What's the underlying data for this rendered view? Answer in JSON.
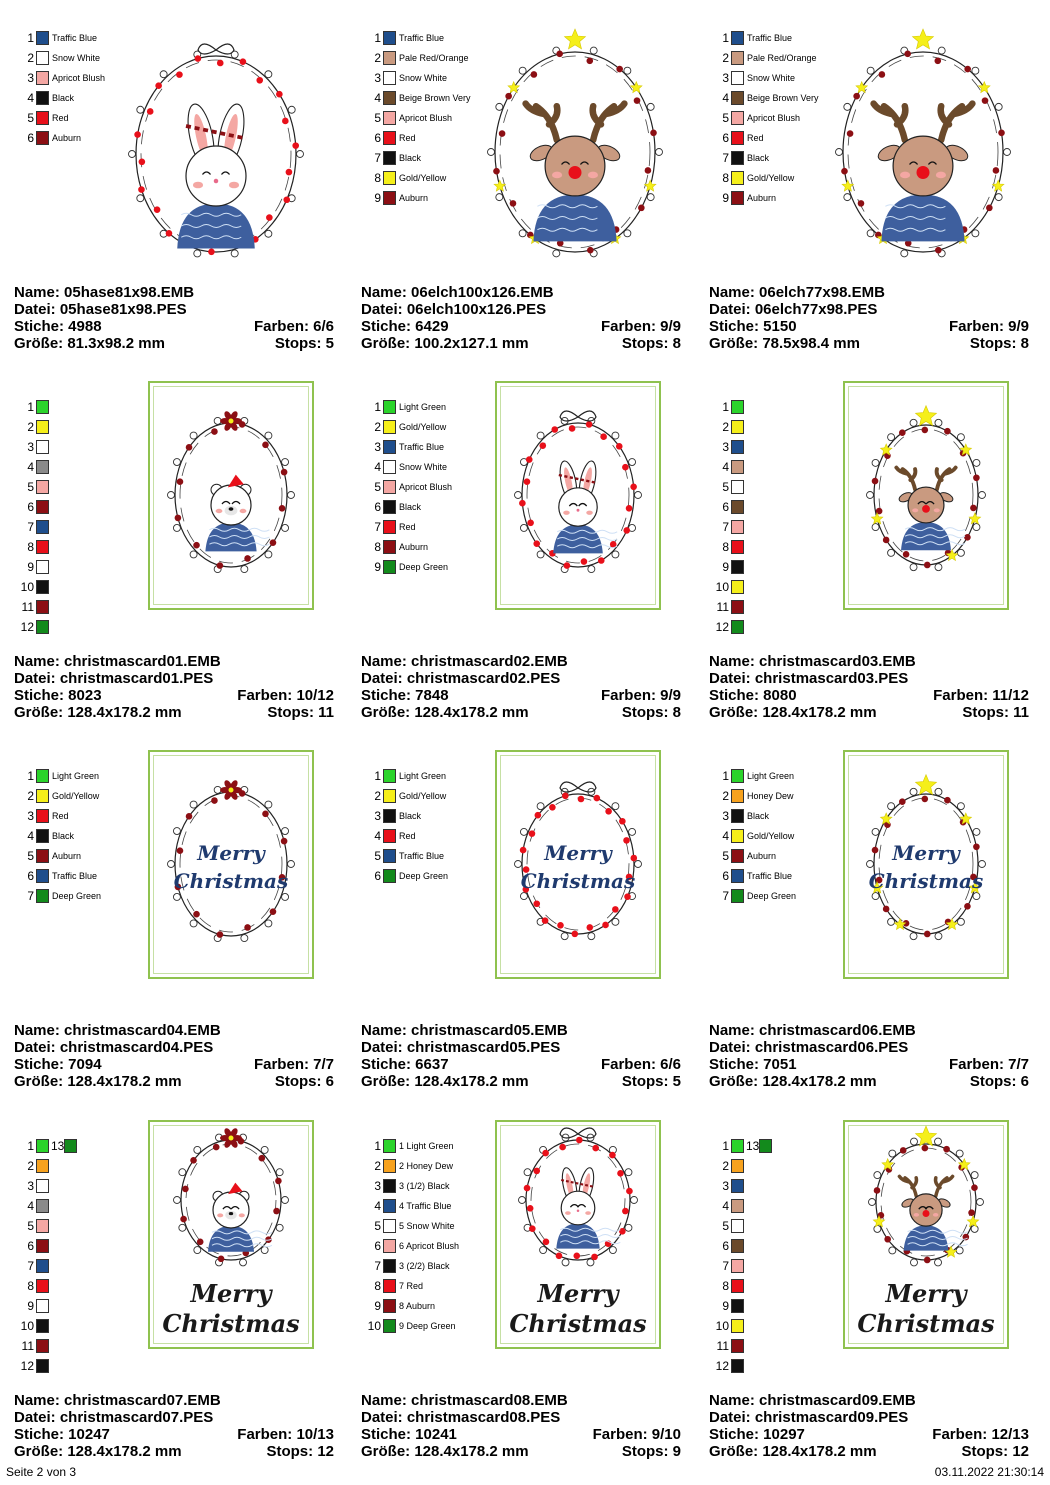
{
  "colors": {
    "Traffic Blue": "#1f4e8c",
    "Snow White": "#ffffff",
    "Apricot Blush": "#f4a7a3",
    "Black": "#111111",
    "Red": "#e8101a",
    "Auburn": "#8c0f14",
    "Pale Red/Orange": "#c99a80",
    "Beige Brown Very": "#6b4a2b",
    "Gold/Yellow": "#f5ef1a",
    "Light Green": "#2bd42b",
    "Deep Green": "#138a1c",
    "Honey Dew": "#f7a21e",
    "Grey": "#8a8a8a"
  },
  "designs": [
    {
      "name": "Name: 05hase81x98.EMB",
      "file": "Datei: 05hase81x98.PES",
      "stitches": "Stiche: 4988",
      "colors_label": "Farben: 6/6",
      "size": "Größe: 81.3x98.2 mm",
      "stops": "Stops: 5",
      "motif": "bunny",
      "card": false,
      "text": "none",
      "palette": [
        {
          "n": "1",
          "c": "#1f4e8c",
          "label": "Traffic Blue"
        },
        {
          "n": "2",
          "c": "#ffffff",
          "label": "Snow White"
        },
        {
          "n": "3",
          "c": "#f4a7a3",
          "label": "Apricot Blush"
        },
        {
          "n": "4",
          "c": "#111111",
          "label": "Black"
        },
        {
          "n": "5",
          "c": "#e8101a",
          "label": "Red"
        },
        {
          "n": "6",
          "c": "#8c0f14",
          "label": "Auburn"
        }
      ]
    },
    {
      "name": "Name: 06elch100x126.EMB",
      "file": "Datei: 06elch100x126.PES",
      "stitches": "Stiche: 6429",
      "colors_label": "Farben: 9/9",
      "size": "Größe: 100.2x127.1 mm",
      "stops": "Stops: 8",
      "motif": "reindeer",
      "card": false,
      "text": "none",
      "palette": [
        {
          "n": "1",
          "c": "#1f4e8c",
          "label": "Traffic Blue"
        },
        {
          "n": "2",
          "c": "#c99a80",
          "label": "Pale Red/Orange"
        },
        {
          "n": "3",
          "c": "#ffffff",
          "label": "Snow White"
        },
        {
          "n": "4",
          "c": "#6b4a2b",
          "label": "Beige Brown Very"
        },
        {
          "n": "5",
          "c": "#f4a7a3",
          "label": "Apricot Blush"
        },
        {
          "n": "6",
          "c": "#e8101a",
          "label": "Red"
        },
        {
          "n": "7",
          "c": "#111111",
          "label": "Black"
        },
        {
          "n": "8",
          "c": "#f5ef1a",
          "label": "Gold/Yellow"
        },
        {
          "n": "9",
          "c": "#8c0f14",
          "label": "Auburn"
        }
      ]
    },
    {
      "name": "Name: 06elch77x98.EMB",
      "file": "Datei: 06elch77x98.PES",
      "stitches": "Stiche: 5150",
      "colors_label": "Farben: 9/9",
      "size": "Größe: 78.5x98.4 mm",
      "stops": "Stops: 8",
      "motif": "reindeer",
      "card": false,
      "text": "none",
      "palette": [
        {
          "n": "1",
          "c": "#1f4e8c",
          "label": "Traffic Blue"
        },
        {
          "n": "2",
          "c": "#c99a80",
          "label": "Pale Red/Orange"
        },
        {
          "n": "3",
          "c": "#ffffff",
          "label": "Snow White"
        },
        {
          "n": "4",
          "c": "#6b4a2b",
          "label": "Beige Brown Very"
        },
        {
          "n": "5",
          "c": "#f4a7a3",
          "label": "Apricot Blush"
        },
        {
          "n": "6",
          "c": "#e8101a",
          "label": "Red"
        },
        {
          "n": "7",
          "c": "#111111",
          "label": "Black"
        },
        {
          "n": "8",
          "c": "#f5ef1a",
          "label": "Gold/Yellow"
        },
        {
          "n": "9",
          "c": "#8c0f14",
          "label": "Auburn"
        }
      ]
    },
    {
      "name": "Name: christmascard01.EMB",
      "file": "Datei: christmascard01.PES",
      "stitches": "Stiche: 8023",
      "colors_label": "Farben: 10/12",
      "size": "Größe: 128.4x178.2 mm",
      "stops": "Stops: 11",
      "motif": "bear",
      "card": true,
      "text": "none",
      "palette": [
        {
          "n": "1",
          "c": "#2bd42b",
          "label": ""
        },
        {
          "n": "2",
          "c": "#f5ef1a",
          "label": ""
        },
        {
          "n": "3",
          "c": "#ffffff",
          "label": ""
        },
        {
          "n": "4",
          "c": "#8a8a8a",
          "label": ""
        },
        {
          "n": "5",
          "c": "#f4a7a3",
          "label": ""
        },
        {
          "n": "6",
          "c": "#8c0f14",
          "label": ""
        },
        {
          "n": "7",
          "c": "#1f4e8c",
          "label": ""
        },
        {
          "n": "8",
          "c": "#e8101a",
          "label": ""
        },
        {
          "n": "9",
          "c": "#ffffff",
          "label": ""
        },
        {
          "n": "10",
          "c": "#111111",
          "label": ""
        },
        {
          "n": "11",
          "c": "#8c0f14",
          "label": ""
        },
        {
          "n": "12",
          "c": "#138a1c",
          "label": ""
        }
      ]
    },
    {
      "name": "Name: christmascard02.EMB",
      "file": "Datei: christmascard02.PES",
      "stitches": "Stiche: 7848",
      "colors_label": "Farben: 9/9",
      "size": "Größe: 128.4x178.2 mm",
      "stops": "Stops: 8",
      "motif": "bunny",
      "card": true,
      "text": "none",
      "palette": [
        {
          "n": "1",
          "c": "#2bd42b",
          "label": "Light Green"
        },
        {
          "n": "2",
          "c": "#f5ef1a",
          "label": "Gold/Yellow"
        },
        {
          "n": "3",
          "c": "#1f4e8c",
          "label": "Traffic Blue"
        },
        {
          "n": "4",
          "c": "#ffffff",
          "label": "Snow White"
        },
        {
          "n": "5",
          "c": "#f4a7a3",
          "label": "Apricot Blush"
        },
        {
          "n": "6",
          "c": "#111111",
          "label": "Black"
        },
        {
          "n": "7",
          "c": "#e8101a",
          "label": "Red"
        },
        {
          "n": "8",
          "c": "#8c0f14",
          "label": "Auburn"
        },
        {
          "n": "9",
          "c": "#138a1c",
          "label": "Deep Green"
        }
      ]
    },
    {
      "name": "Name: christmascard03.EMB",
      "file": "Datei: christmascard03.PES",
      "stitches": "Stiche: 8080",
      "colors_label": "Farben: 11/12",
      "size": "Größe: 128.4x178.2 mm",
      "stops": "Stops: 11",
      "motif": "reindeer",
      "card": true,
      "text": "none",
      "palette": [
        {
          "n": "1",
          "c": "#2bd42b",
          "label": ""
        },
        {
          "n": "2",
          "c": "#f5ef1a",
          "label": ""
        },
        {
          "n": "3",
          "c": "#1f4e8c",
          "label": ""
        },
        {
          "n": "4",
          "c": "#c99a80",
          "label": ""
        },
        {
          "n": "5",
          "c": "#ffffff",
          "label": ""
        },
        {
          "n": "6",
          "c": "#6b4a2b",
          "label": ""
        },
        {
          "n": "7",
          "c": "#f4a7a3",
          "label": ""
        },
        {
          "n": "8",
          "c": "#e8101a",
          "label": ""
        },
        {
          "n": "9",
          "c": "#111111",
          "label": ""
        },
        {
          "n": "10",
          "c": "#f5ef1a",
          "label": ""
        },
        {
          "n": "11",
          "c": "#8c0f14",
          "label": ""
        },
        {
          "n": "12",
          "c": "#138a1c",
          "label": ""
        }
      ]
    },
    {
      "name": "Name: christmascard04.EMB",
      "file": "Datei: christmascard04.PES",
      "stitches": "Stiche: 7094",
      "colors_label": "Farben: 7/7",
      "size": "Größe: 128.4x178.2 mm",
      "stops": "Stops: 6",
      "motif": "poinsettia-wreath",
      "card": true,
      "text": "mid",
      "merry": "Merry",
      "christmas": "Christmas",
      "palette": [
        {
          "n": "1",
          "c": "#2bd42b",
          "label": "Light Green"
        },
        {
          "n": "2",
          "c": "#f5ef1a",
          "label": "Gold/Yellow"
        },
        {
          "n": "3",
          "c": "#e8101a",
          "label": "Red"
        },
        {
          "n": "4",
          "c": "#111111",
          "label": "Black"
        },
        {
          "n": "5",
          "c": "#8c0f14",
          "label": "Auburn"
        },
        {
          "n": "6",
          "c": "#1f4e8c",
          "label": "Traffic Blue"
        },
        {
          "n": "7",
          "c": "#138a1c",
          "label": "Deep Green"
        }
      ]
    },
    {
      "name": "Name: christmascard05.EMB",
      "file": "Datei: christmascard05.PES",
      "stitches": "Stiche: 6637",
      "colors_label": "Farben: 6/6",
      "size": "Größe: 128.4x178.2 mm",
      "stops": "Stops: 5",
      "motif": "bow-wreath",
      "card": true,
      "text": "mid",
      "merry": "Merry",
      "christmas": "Christmas",
      "palette": [
        {
          "n": "1",
          "c": "#2bd42b",
          "label": "Light Green"
        },
        {
          "n": "2",
          "c": "#f5ef1a",
          "label": "Gold/Yellow"
        },
        {
          "n": "3",
          "c": "#111111",
          "label": "Black"
        },
        {
          "n": "4",
          "c": "#e8101a",
          "label": "Red"
        },
        {
          "n": "5",
          "c": "#1f4e8c",
          "label": "Traffic Blue"
        },
        {
          "n": "6",
          "c": "#138a1c",
          "label": "Deep Green"
        }
      ]
    },
    {
      "name": "Name: christmascard06.EMB",
      "file": "Datei: christmascard06.PES",
      "stitches": "Stiche: 7051",
      "colors_label": "Farben: 7/7",
      "size": "Größe: 128.4x178.2 mm",
      "stops": "Stops: 6",
      "motif": "star-wreath",
      "card": true,
      "text": "mid",
      "merry": "Merry",
      "christmas": "Christmas",
      "palette": [
        {
          "n": "1",
          "c": "#2bd42b",
          "label": "Light Green"
        },
        {
          "n": "2",
          "c": "#f7a21e",
          "label": "Honey Dew"
        },
        {
          "n": "3",
          "c": "#111111",
          "label": "Black"
        },
        {
          "n": "4",
          "c": "#f5ef1a",
          "label": "Gold/Yellow"
        },
        {
          "n": "5",
          "c": "#8c0f14",
          "label": "Auburn"
        },
        {
          "n": "6",
          "c": "#1f4e8c",
          "label": "Traffic Blue"
        },
        {
          "n": "7",
          "c": "#138a1c",
          "label": "Deep Green"
        }
      ]
    },
    {
      "name": "Name: christmascard07.EMB",
      "file": "Datei: christmascard07.PES",
      "stitches": "Stiche: 10247",
      "colors_label": "Farben: 10/13",
      "size": "Größe: 128.4x178.2 mm",
      "stops": "Stops: 12",
      "motif": "bear",
      "card": true,
      "text": "bottom",
      "merry": "Merry",
      "christmas": "Christmas",
      "palette": [
        {
          "n": "1",
          "c": "#2bd42b",
          "label": "",
          "n2": "13",
          "c2": "#138a1c"
        },
        {
          "n": "2",
          "c": "#f7a21e",
          "label": ""
        },
        {
          "n": "3",
          "c": "#ffffff",
          "label": ""
        },
        {
          "n": "4",
          "c": "#8a8a8a",
          "label": ""
        },
        {
          "n": "5",
          "c": "#f4a7a3",
          "label": ""
        },
        {
          "n": "6",
          "c": "#8c0f14",
          "label": ""
        },
        {
          "n": "7",
          "c": "#1f4e8c",
          "label": ""
        },
        {
          "n": "8",
          "c": "#e8101a",
          "label": ""
        },
        {
          "n": "9",
          "c": "#ffffff",
          "label": ""
        },
        {
          "n": "10",
          "c": "#111111",
          "label": ""
        },
        {
          "n": "11",
          "c": "#8c0f14",
          "label": ""
        },
        {
          "n": "12",
          "c": "#111111",
          "label": ""
        }
      ]
    },
    {
      "name": "Name: christmascard08.EMB",
      "file": "Datei: christmascard08.PES",
      "stitches": "Stiche: 10241",
      "colors_label": "Farben: 9/10",
      "size": "Größe: 128.4x178.2 mm",
      "stops": "Stops: 9",
      "motif": "bunny",
      "card": true,
      "text": "bottom",
      "merry": "Merry",
      "christmas": "Christmas",
      "palette": [
        {
          "n": "1",
          "c": "#2bd42b",
          "label": "1 Light Green"
        },
        {
          "n": "2",
          "c": "#f7a21e",
          "label": "2 Honey Dew"
        },
        {
          "n": "3",
          "c": "#111111",
          "label": "3 (1/2) Black"
        },
        {
          "n": "4",
          "c": "#1f4e8c",
          "label": "4 Traffic Blue"
        },
        {
          "n": "5",
          "c": "#ffffff",
          "label": "5 Snow White"
        },
        {
          "n": "6",
          "c": "#f4a7a3",
          "label": "6 Apricot Blush"
        },
        {
          "n": "7",
          "c": "#111111",
          "label": "3 (2/2) Black"
        },
        {
          "n": "8",
          "c": "#e8101a",
          "label": "7 Red"
        },
        {
          "n": "9",
          "c": "#8c0f14",
          "label": "8 Auburn"
        },
        {
          "n": "10",
          "c": "#138a1c",
          "label": "9 Deep Green"
        }
      ]
    },
    {
      "name": "Name: christmascard09.EMB",
      "file": "Datei: christmascard09.PES",
      "stitches": "Stiche: 10297",
      "colors_label": "Farben: 12/13",
      "size": "Größe: 128.4x178.2 mm",
      "stops": "Stops: 12",
      "motif": "reindeer",
      "card": true,
      "text": "bottom",
      "merry": "Merry",
      "christmas": "Christmas",
      "palette": [
        {
          "n": "1",
          "c": "#2bd42b",
          "label": "",
          "n2": "13",
          "c2": "#138a1c"
        },
        {
          "n": "2",
          "c": "#f7a21e",
          "label": ""
        },
        {
          "n": "3",
          "c": "#1f4e8c",
          "label": ""
        },
        {
          "n": "4",
          "c": "#c99a80",
          "label": ""
        },
        {
          "n": "5",
          "c": "#ffffff",
          "label": ""
        },
        {
          "n": "6",
          "c": "#6b4a2b",
          "label": ""
        },
        {
          "n": "7",
          "c": "#f4a7a3",
          "label": ""
        },
        {
          "n": "8",
          "c": "#e8101a",
          "label": ""
        },
        {
          "n": "9",
          "c": "#111111",
          "label": ""
        },
        {
          "n": "10",
          "c": "#f5ef1a",
          "label": ""
        },
        {
          "n": "11",
          "c": "#8c0f14",
          "label": ""
        },
        {
          "n": "12",
          "c": "#111111",
          "label": ""
        }
      ]
    }
  ],
  "footer": {
    "page": "Seite 2 von 3",
    "datetime": "03.11.2022 21:30:14"
  }
}
